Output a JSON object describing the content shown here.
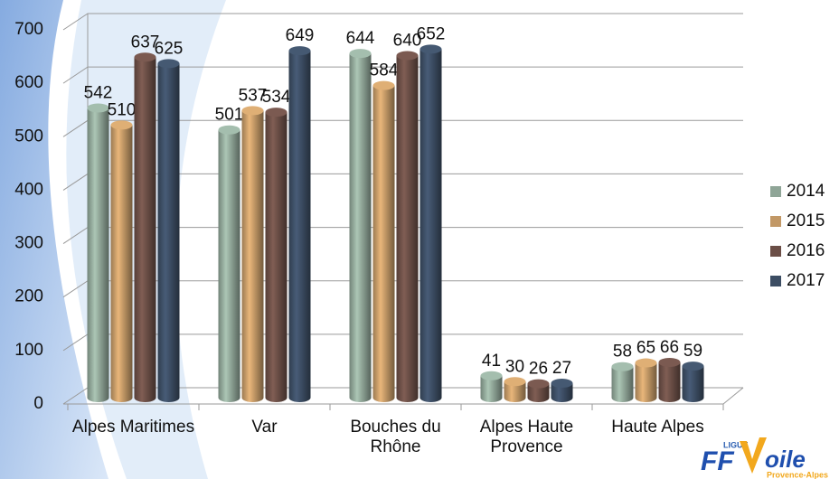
{
  "chart_data": {
    "type": "bar3d",
    "categories": [
      "Alpes Maritimes",
      "Var",
      "Bouches du Rhône",
      "Alpes Haute Provence",
      "Haute Alpes"
    ],
    "series": [
      {
        "name": "2014",
        "color": "#8fa597",
        "values": [
          542,
          501,
          644,
          41,
          58
        ]
      },
      {
        "name": "2015",
        "color": "#c29866",
        "values": [
          510,
          537,
          584,
          30,
          65
        ]
      },
      {
        "name": "2016",
        "color": "#6b4e46",
        "values": [
          637,
          534,
          640,
          26,
          66
        ]
      },
      {
        "name": "2017",
        "color": "#3c4d63",
        "values": [
          625,
          649,
          652,
          27,
          59
        ]
      }
    ],
    "ylim": [
      0,
      700
    ],
    "yticks": [
      0,
      100,
      200,
      300,
      400,
      500,
      600,
      700
    ],
    "grid": true,
    "legend": "right"
  },
  "logo": {
    "ligue": "LIGUE",
    "ff": "FF",
    "voile": "oile",
    "region": "Provence-Alpes"
  }
}
